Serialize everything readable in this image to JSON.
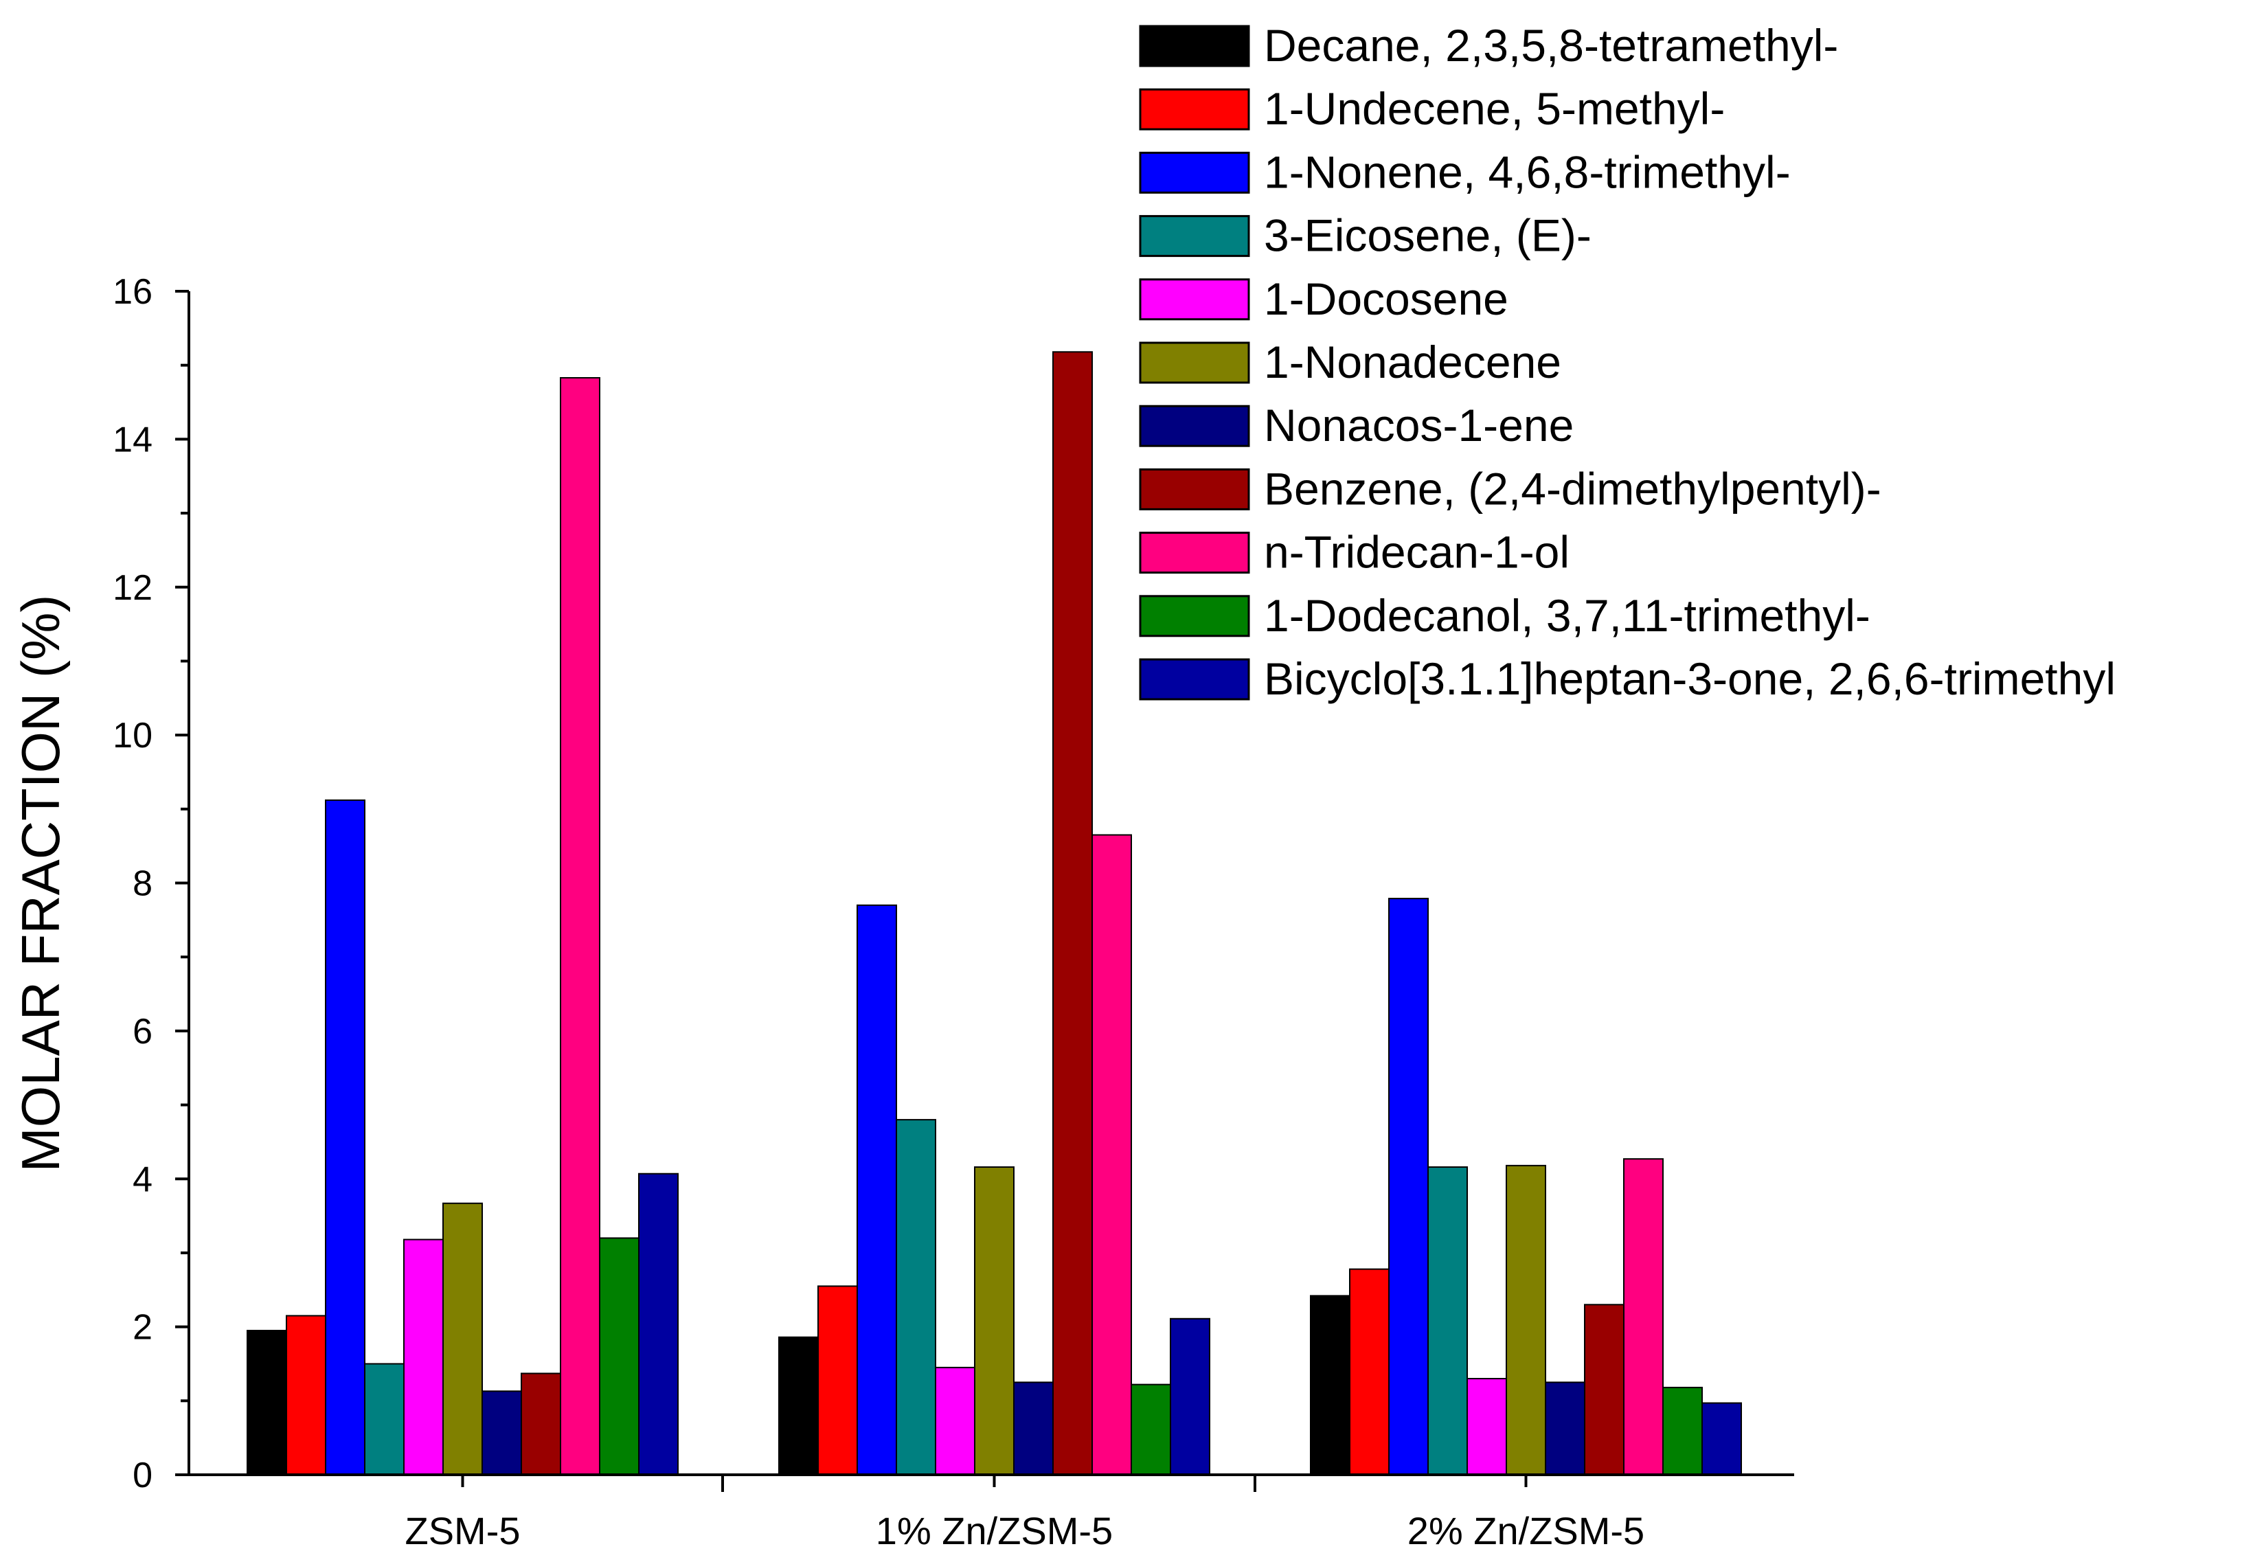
{
  "chart_data": {
    "type": "bar",
    "title": "",
    "xlabel": "",
    "ylabel": "MOLAR FRACTION (%)",
    "ylim": [
      0,
      16
    ],
    "yticks": [
      0,
      2,
      4,
      6,
      8,
      10,
      12,
      14,
      16
    ],
    "grid": false,
    "legend_position": "top-right",
    "categories": [
      "ZSM-5",
      "1% Zn/ZSM-5",
      "2% Zn/ZSM-5"
    ],
    "series": [
      {
        "name": "Decane, 2,3,5,8-tetramethyl-",
        "color": "#000000",
        "values": [
          1.95,
          1.86,
          2.42
        ]
      },
      {
        "name": "1-Undecene, 5-methyl-",
        "color": "#ff0000",
        "values": [
          2.15,
          2.55,
          2.78
        ]
      },
      {
        "name": "1-Nonene, 4,6,8-trimethyl-",
        "color": "#0000ff",
        "values": [
          9.12,
          7.7,
          7.79
        ]
      },
      {
        "name": "3-Eicosene, (E)-",
        "color": "#008080",
        "values": [
          1.5,
          4.8,
          4.16
        ]
      },
      {
        "name": "1-Docosene",
        "color": "#ff00ff",
        "values": [
          3.18,
          1.45,
          1.3
        ]
      },
      {
        "name": "1-Nonadecene",
        "color": "#808000",
        "values": [
          3.67,
          4.16,
          4.18
        ]
      },
      {
        "name": "Nonacos-1-ene",
        "color": "#000080",
        "values": [
          1.13,
          1.25,
          1.25
        ]
      },
      {
        "name": "Benzene, (2,4-dimethylpentyl)-",
        "color": "#990000",
        "values": [
          1.37,
          15.18,
          2.3
        ]
      },
      {
        "name": "n-Tridecan-1-ol",
        "color": "#ff0080",
        "values": [
          14.83,
          8.65,
          4.27
        ]
      },
      {
        "name": "1-Dodecanol, 3,7,11-trimethyl-",
        "color": "#008000",
        "values": [
          3.2,
          1.22,
          1.18
        ]
      },
      {
        "name": "Bicyclo[3.1.1]heptan-3-one, 2,6,6-trimethyl",
        "color": "#0000a0",
        "values": [
          4.07,
          2.11,
          0.97
        ]
      }
    ]
  }
}
